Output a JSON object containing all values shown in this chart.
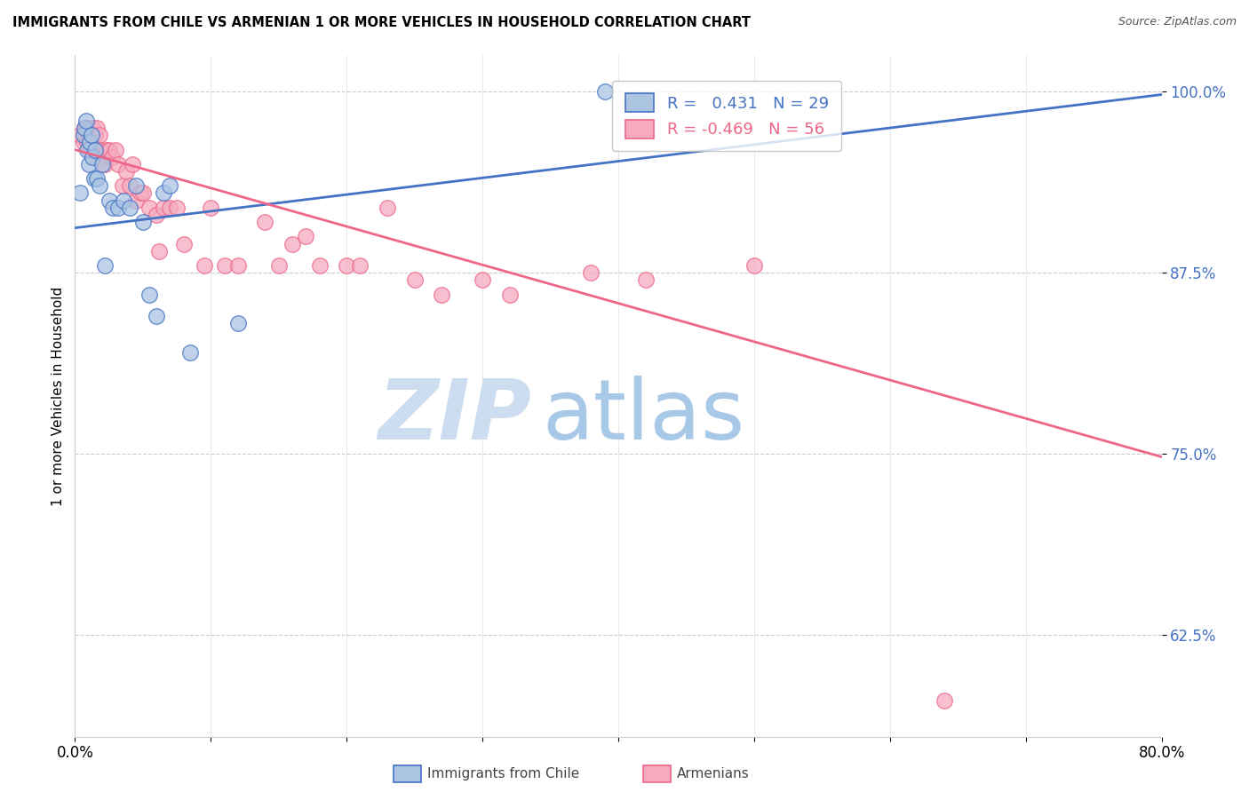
{
  "title": "IMMIGRANTS FROM CHILE VS ARMENIAN 1 OR MORE VEHICLES IN HOUSEHOLD CORRELATION CHART",
  "source": "Source: ZipAtlas.com",
  "ylabel": "1 or more Vehicles in Household",
  "xmin": 0.0,
  "xmax": 0.8,
  "ymin": 0.555,
  "ymax": 1.025,
  "yticks": [
    0.625,
    0.75,
    0.875,
    1.0
  ],
  "ytick_labels": [
    "62.5%",
    "75.0%",
    "87.5%",
    "100.0%"
  ],
  "xticks": [
    0.0,
    0.1,
    0.2,
    0.3,
    0.4,
    0.5,
    0.6,
    0.7,
    0.8
  ],
  "xtick_labels": [
    "0.0%",
    "",
    "",
    "",
    "",
    "",
    "",
    "",
    "80.0%"
  ],
  "chile_R": 0.431,
  "chile_N": 29,
  "armenian_R": -0.469,
  "armenian_N": 56,
  "chile_color": "#aac4e2",
  "armenian_color": "#f5aabf",
  "chile_line_color": "#4472c4",
  "armenian_line_color": "#ee6688",
  "legend_chile_label": "Immigrants from Chile",
  "legend_armenian_label": "Armenians",
  "watermark_zip": "ZIP",
  "watermark_atlas": "atlas",
  "chile_x": [
    0.004,
    0.006,
    0.007,
    0.008,
    0.009,
    0.01,
    0.011,
    0.012,
    0.013,
    0.014,
    0.015,
    0.016,
    0.018,
    0.02,
    0.022,
    0.025,
    0.028,
    0.032,
    0.036,
    0.04,
    0.045,
    0.05,
    0.055,
    0.06,
    0.065,
    0.07,
    0.085,
    0.12,
    0.39
  ],
  "chile_y": [
    0.93,
    0.97,
    0.975,
    0.98,
    0.96,
    0.95,
    0.965,
    0.97,
    0.955,
    0.94,
    0.96,
    0.94,
    0.935,
    0.95,
    0.88,
    0.925,
    0.92,
    0.92,
    0.925,
    0.92,
    0.935,
    0.91,
    0.86,
    0.845,
    0.93,
    0.935,
    0.82,
    0.84,
    1.0
  ],
  "armenian_x": [
    0.004,
    0.006,
    0.007,
    0.008,
    0.009,
    0.01,
    0.011,
    0.012,
    0.013,
    0.014,
    0.015,
    0.016,
    0.017,
    0.018,
    0.019,
    0.02,
    0.022,
    0.023,
    0.025,
    0.027,
    0.03,
    0.032,
    0.035,
    0.038,
    0.04,
    0.042,
    0.045,
    0.048,
    0.05,
    0.055,
    0.06,
    0.062,
    0.065,
    0.07,
    0.075,
    0.08,
    0.095,
    0.1,
    0.11,
    0.12,
    0.14,
    0.15,
    0.16,
    0.17,
    0.18,
    0.2,
    0.21,
    0.23,
    0.25,
    0.27,
    0.3,
    0.32,
    0.38,
    0.42,
    0.5,
    0.64
  ],
  "armenian_y": [
    0.97,
    0.965,
    0.975,
    0.975,
    0.965,
    0.975,
    0.96,
    0.97,
    0.975,
    0.96,
    0.97,
    0.975,
    0.955,
    0.97,
    0.96,
    0.955,
    0.95,
    0.96,
    0.96,
    0.955,
    0.96,
    0.95,
    0.935,
    0.945,
    0.935,
    0.95,
    0.925,
    0.93,
    0.93,
    0.92,
    0.915,
    0.89,
    0.92,
    0.92,
    0.92,
    0.895,
    0.88,
    0.92,
    0.88,
    0.88,
    0.91,
    0.88,
    0.895,
    0.9,
    0.88,
    0.88,
    0.88,
    0.92,
    0.87,
    0.86,
    0.87,
    0.86,
    0.875,
    0.87,
    0.88,
    0.58
  ],
  "chile_trend_x": [
    0.0,
    0.8
  ],
  "chile_trend_y": [
    0.906,
    0.998
  ],
  "armenian_trend_x": [
    0.0,
    0.8
  ],
  "armenian_trend_y": [
    0.96,
    0.748
  ]
}
